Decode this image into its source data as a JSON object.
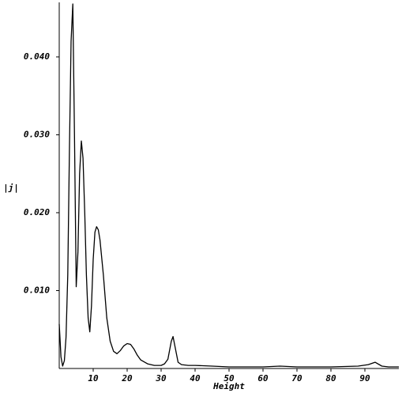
{
  "chart_data": {
    "type": "line",
    "x_label": "Height",
    "y_label": "|j|",
    "xlim": [
      0,
      100
    ],
    "ylim": [
      0,
      0.047
    ],
    "xticks": [
      10,
      20,
      30,
      40,
      50,
      60,
      70,
      80,
      90
    ],
    "yticks": [
      {
        "value": 0.01,
        "label": "0.010"
      },
      {
        "value": 0.02,
        "label": "0.020"
      },
      {
        "value": 0.03,
        "label": "0.030"
      },
      {
        "value": 0.04,
        "label": "0.040"
      }
    ],
    "x": [
      0,
      0.5,
      1,
      1.5,
      2,
      2.5,
      3,
      3.5,
      4,
      4.5,
      5,
      5.5,
      6,
      6.5,
      7,
      7.5,
      8,
      8.5,
      9,
      9.5,
      10,
      10.5,
      11,
      11.5,
      12,
      13,
      14,
      15,
      16,
      17,
      18,
      19,
      20,
      21,
      22,
      23,
      24,
      26,
      28,
      30,
      31,
      32,
      33,
      33.5,
      34,
      35,
      36,
      38,
      40,
      45,
      50,
      60,
      65,
      70,
      80,
      88,
      91,
      93,
      95,
      97,
      100
    ],
    "series": [
      {
        "color": "#000000",
        "values": [
          0.0057,
          0.0015,
          0.0003,
          0.001,
          0.004,
          0.012,
          0.028,
          0.042,
          0.0468,
          0.03,
          0.0105,
          0.015,
          0.025,
          0.0292,
          0.027,
          0.02,
          0.012,
          0.0065,
          0.0047,
          0.008,
          0.014,
          0.0175,
          0.0182,
          0.0178,
          0.0165,
          0.012,
          0.0065,
          0.0035,
          0.0022,
          0.0019,
          0.0023,
          0.0029,
          0.0032,
          0.0031,
          0.0025,
          0.0017,
          0.0011,
          0.0006,
          0.0004,
          0.0004,
          0.0006,
          0.0012,
          0.0035,
          0.0041,
          0.003,
          0.0008,
          0.0005,
          0.0004,
          0.0004,
          0.0003,
          0.0002,
          0.0002,
          0.0003,
          0.0002,
          0.0002,
          0.0003,
          0.0005,
          0.0008,
          0.0003,
          0.0002,
          0.0002
        ]
      }
    ]
  }
}
